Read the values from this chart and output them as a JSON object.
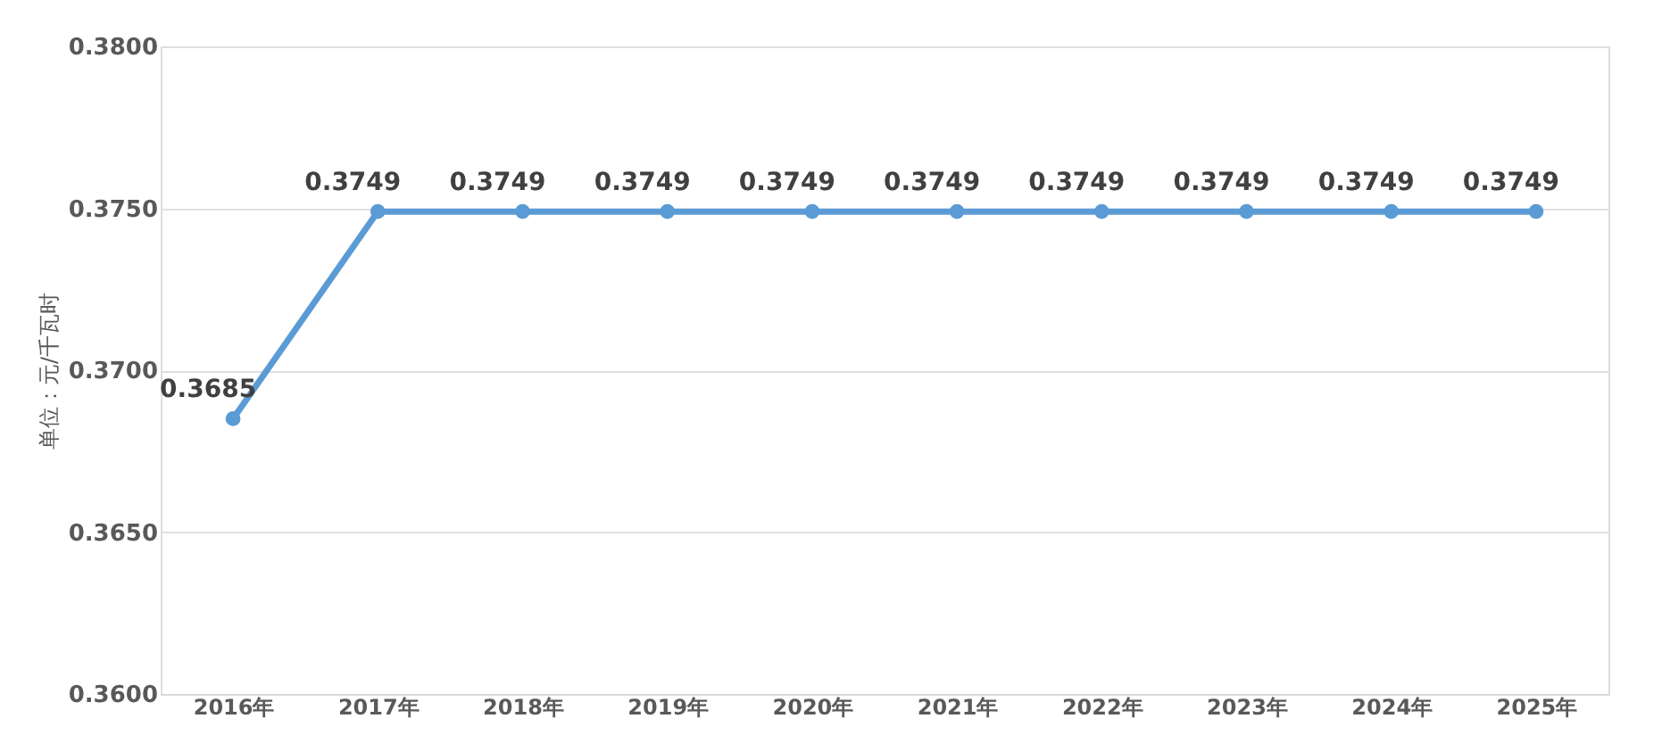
{
  "chart_data": {
    "type": "line",
    "ylabel": "单位：元/千瓦时",
    "categories": [
      "2016年",
      "2017年",
      "2018年",
      "2019年",
      "2020年",
      "2021年",
      "2022年",
      "2023年",
      "2024年",
      "2025年"
    ],
    "series": [
      {
        "color": "#5b9bd5",
        "values": [
          0.3685,
          0.3749,
          0.3749,
          0.3749,
          0.3749,
          0.3749,
          0.3749,
          0.3749,
          0.3749,
          0.3749
        ]
      }
    ],
    "ylim": [
      0.36,
      0.38
    ],
    "yticks": [
      {
        "value": 0.36,
        "label": "0.3600"
      },
      {
        "value": 0.365,
        "label": "0.3650"
      },
      {
        "value": 0.37,
        "label": "0.3700"
      },
      {
        "value": 0.375,
        "label": "0.3750"
      },
      {
        "value": 0.38,
        "label": "0.3800"
      }
    ],
    "grid": "y",
    "data_labels": true,
    "marker": "circle",
    "line_style": "solid"
  }
}
